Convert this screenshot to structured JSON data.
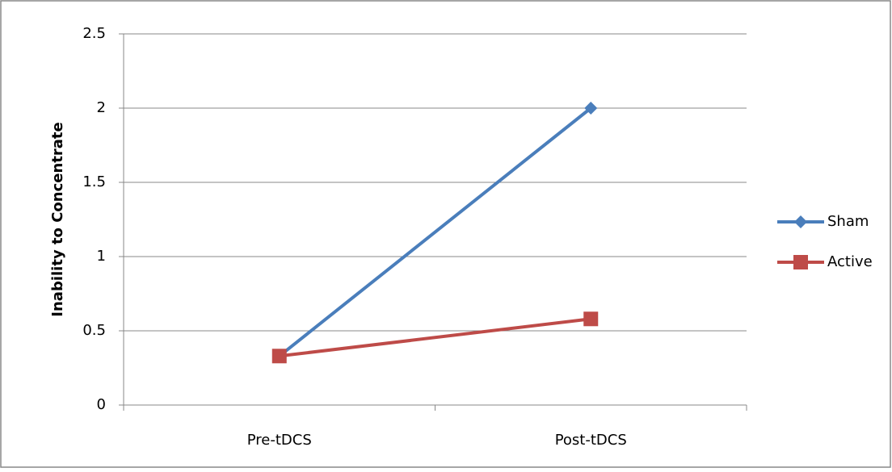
{
  "chart_data": {
    "type": "line",
    "y_label": "Inability to Concentrate",
    "categories": [
      "Pre-tDCS",
      "Post-tDCS"
    ],
    "series": [
      {
        "name": "Sham",
        "color": "#4a7ebb",
        "marker": "diamond",
        "values": [
          0.33,
          2.0
        ]
      },
      {
        "name": "Active",
        "color": "#be4b48",
        "marker": "square",
        "values": [
          0.33,
          0.58
        ]
      }
    ],
    "ylim": [
      0,
      2.5
    ],
    "yticks": [
      0,
      0.5,
      1,
      1.5,
      2,
      2.5
    ],
    "grid": true,
    "legend": "right"
  }
}
